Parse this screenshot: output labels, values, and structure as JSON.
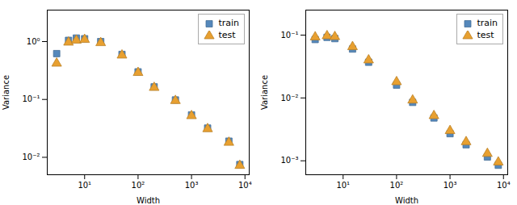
{
  "chart_data": [
    {
      "type": "scatter",
      "x": [
        3,
        5,
        7,
        10,
        20,
        50,
        100,
        200,
        500,
        1000,
        2000,
        5000,
        8000
      ],
      "series": [
        {
          "name": "train",
          "color": "#5588bb",
          "marker": "square",
          "values": [
            0.62,
            1.05,
            1.15,
            1.12,
            1.0,
            0.6,
            0.3,
            0.165,
            0.098,
            0.054,
            0.032,
            0.019,
            0.0075
          ]
        },
        {
          "name": "test",
          "color": "#e8a030",
          "marker": "triangle",
          "values": [
            0.42,
            0.97,
            1.05,
            1.08,
            0.95,
            0.58,
            0.29,
            0.16,
            0.095,
            0.052,
            0.031,
            0.018,
            0.0072
          ]
        }
      ],
      "xlabel": "Width",
      "ylabel": "Variance",
      "xlim": [
        2,
        12000
      ],
      "ylim": [
        0.005,
        3.5
      ],
      "xticks": [
        {
          "value": 10,
          "label": "10¹"
        },
        {
          "value": 100,
          "label": "10²"
        },
        {
          "value": 1000,
          "label": "10³"
        },
        {
          "value": 10000,
          "label": "10⁴"
        }
      ],
      "yticks": [
        {
          "value": 0.01,
          "label": "10⁻²"
        },
        {
          "value": 0.1,
          "label": "10⁻¹"
        },
        {
          "value": 1,
          "label": "10⁰"
        }
      ],
      "log": true,
      "grid": false,
      "legend": "upper right"
    },
    {
      "type": "scatter",
      "x": [
        3,
        5,
        7,
        15,
        30,
        100,
        200,
        500,
        1000,
        2000,
        5000,
        8000
      ],
      "series": [
        {
          "name": "train",
          "color": "#5588bb",
          "marker": "square",
          "values": [
            0.085,
            0.092,
            0.088,
            0.06,
            0.037,
            0.016,
            0.0085,
            0.0048,
            0.0027,
            0.0018,
            0.00115,
            0.00085
          ]
        },
        {
          "name": "test",
          "color": "#e8a030",
          "marker": "triangle",
          "values": [
            0.093,
            0.097,
            0.094,
            0.065,
            0.04,
            0.018,
            0.0092,
            0.0052,
            0.003,
            0.002,
            0.0013,
            0.00095
          ]
        }
      ],
      "xlabel": "Width",
      "ylabel": "Variance",
      "xlim": [
        2,
        12000
      ],
      "ylim": [
        0.0006,
        0.25
      ],
      "xticks": [
        {
          "value": 10,
          "label": "10¹"
        },
        {
          "value": 100,
          "label": "10²"
        },
        {
          "value": 1000,
          "label": "10³"
        },
        {
          "value": 10000,
          "label": "10⁴"
        }
      ],
      "yticks": [
        {
          "value": 0.001,
          "label": "10⁻³"
        },
        {
          "value": 0.01,
          "label": "10⁻²"
        },
        {
          "value": 0.1,
          "label": "10⁻¹"
        }
      ],
      "log": true,
      "grid": false,
      "legend": "upper right"
    }
  ]
}
